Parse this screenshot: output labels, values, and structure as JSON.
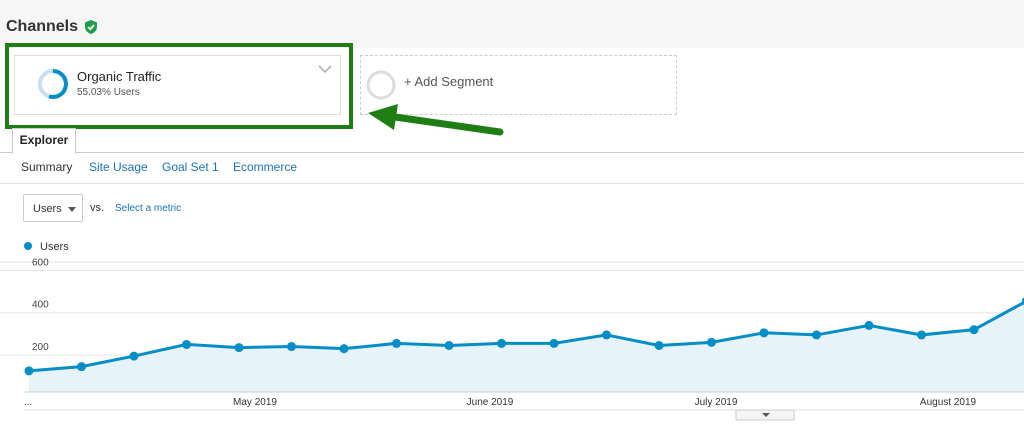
{
  "header": {
    "title": "Channels"
  },
  "segment": {
    "name": "Organic Traffic",
    "detail": "55.03% Users",
    "add": "+ Add Segment"
  },
  "tabs": {
    "active": "Explorer",
    "sub": [
      "Summary",
      "Site Usage",
      "Goal Set 1",
      "Ecommerce"
    ]
  },
  "metric": {
    "selected": "Users",
    "vs": "vs.",
    "select": "Select a metric"
  },
  "chart_data": {
    "type": "area",
    "series": [
      {
        "name": "Users",
        "color": "#058dc7",
        "values": [
          125,
          145,
          195,
          250,
          235,
          240,
          230,
          255,
          245,
          255,
          255,
          295,
          245,
          260,
          305,
          295,
          340,
          295,
          320,
          455
        ]
      }
    ],
    "x_labels": [
      "...",
      "May 2019",
      "June 2019",
      "July 2019",
      "August 2019"
    ],
    "ylim": [
      25,
      640
    ],
    "yticks": [
      200,
      400,
      600
    ],
    "grid": true
  }
}
